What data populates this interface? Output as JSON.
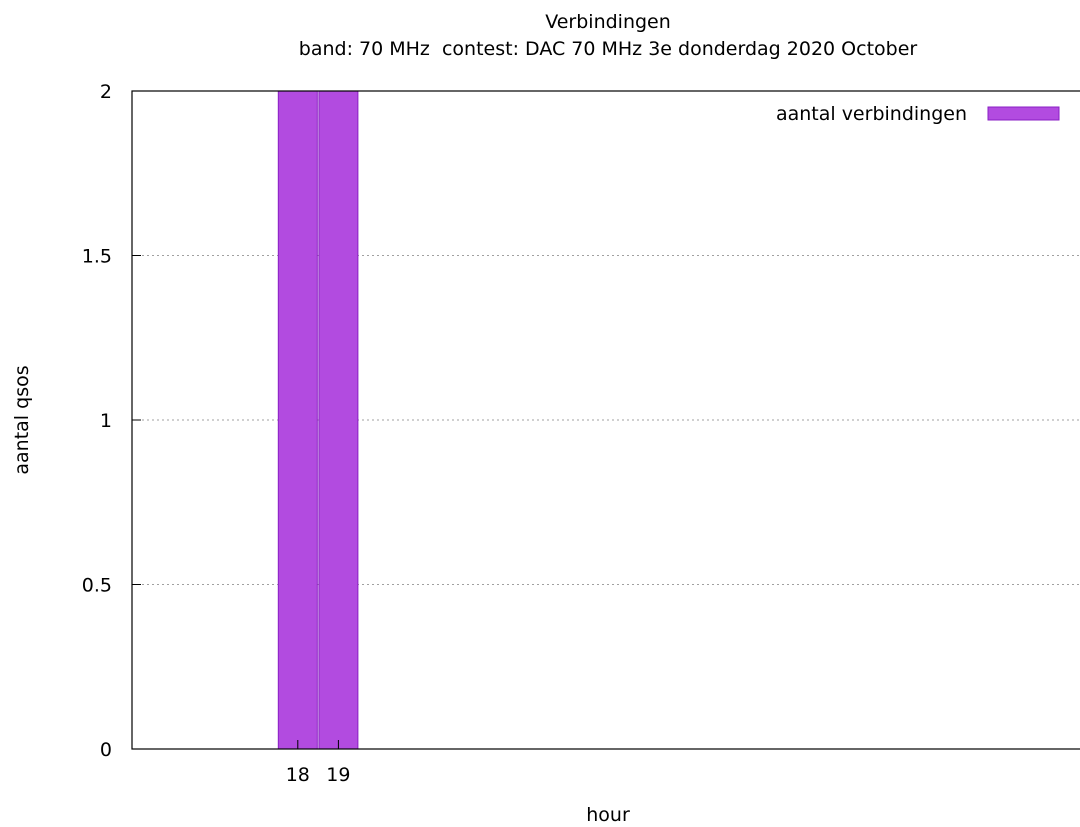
{
  "chart_data": {
    "type": "bar",
    "title": "Verbindingen",
    "subtitle": "band: 70 MHz  contest: DAC 70 MHz 3e donderdag 2020 October",
    "xlabel": "hour",
    "ylabel": "aantal qsos",
    "categories": [
      "18",
      "19"
    ],
    "series": [
      {
        "name": "aantal verbindingen",
        "values": [
          2,
          2
        ]
      }
    ],
    "ylim": [
      0,
      2
    ],
    "yticks": [
      "0",
      "0.5",
      "1",
      "1.5",
      "2"
    ],
    "grid": "horizontal-dotted",
    "legend_position": "top-right",
    "colors": {
      "bar_fill": "#b24be0",
      "bar_stroke": "#8a1fc4",
      "grid": "#a0a0a0",
      "axis": "#000000"
    }
  }
}
